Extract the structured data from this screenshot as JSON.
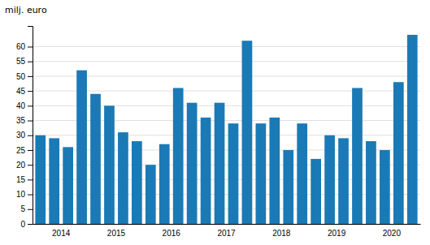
{
  "chart_data": {
    "type": "bar",
    "ylabel": "milj. euro",
    "categories": [
      null,
      "2014",
      null,
      null,
      null,
      "2015",
      null,
      null,
      null,
      "2016",
      null,
      null,
      null,
      "2017",
      null,
      null,
      null,
      "2018",
      null,
      null,
      null,
      "2019",
      null,
      null,
      null,
      "2020",
      null,
      null
    ],
    "values": [
      30,
      29,
      26,
      52,
      44,
      40,
      31,
      28,
      20,
      27,
      46,
      41,
      36,
      41,
      34,
      62,
      34,
      36,
      25,
      34,
      22,
      30,
      29,
      46,
      28,
      25,
      48,
      64
    ],
    "color": "#1a7ab5",
    "ylim": [
      0,
      67
    ],
    "yticks": [
      0,
      5,
      10,
      15,
      20,
      25,
      30,
      35,
      40,
      45,
      50,
      55,
      60
    ],
    "grid": true
  }
}
